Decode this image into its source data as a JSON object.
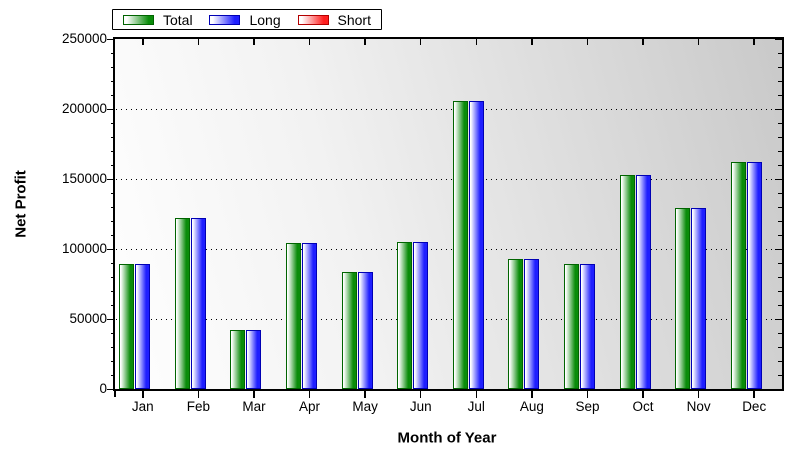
{
  "chart_data": {
    "type": "bar",
    "title": "",
    "xlabel": "Month of Year",
    "ylabel": "Net Profit",
    "categories": [
      "Jan",
      "Feb",
      "Mar",
      "Apr",
      "May",
      "Jun",
      "Jul",
      "Aug",
      "Sep",
      "Oct",
      "Nov",
      "Dec"
    ],
    "series": [
      {
        "name": "Total",
        "color": "#0a8c0a",
        "border_color": "#006400",
        "values": [
          89500,
          122000,
          42000,
          104500,
          83500,
          105000,
          205500,
          93000,
          89500,
          153000,
          129000,
          162000
        ]
      },
      {
        "name": "Long",
        "color": "#1f1fff",
        "border_color": "#0000b4",
        "values": [
          89500,
          122000,
          42000,
          104500,
          83500,
          105000,
          205500,
          93000,
          89500,
          153000,
          129000,
          162000
        ]
      },
      {
        "name": "Short",
        "color": "#ff1f1f",
        "border_color": "#b40000",
        "values": [
          0,
          0,
          0,
          0,
          0,
          0,
          0,
          0,
          0,
          0,
          0,
          0
        ]
      }
    ],
    "ylim": [
      0,
      250000
    ],
    "y_major_step": 50000,
    "y_minor_step": 10000,
    "y_tick_labels": [
      "0",
      "50000",
      "100000",
      "150000",
      "200000",
      "250000"
    ],
    "grid": "dotted-horizontal-at-major-ticks",
    "legend_position": "top-left",
    "plot_bg_gradient": [
      "#ffffff",
      "#c9c9c9"
    ],
    "frame_color": "#000000"
  }
}
